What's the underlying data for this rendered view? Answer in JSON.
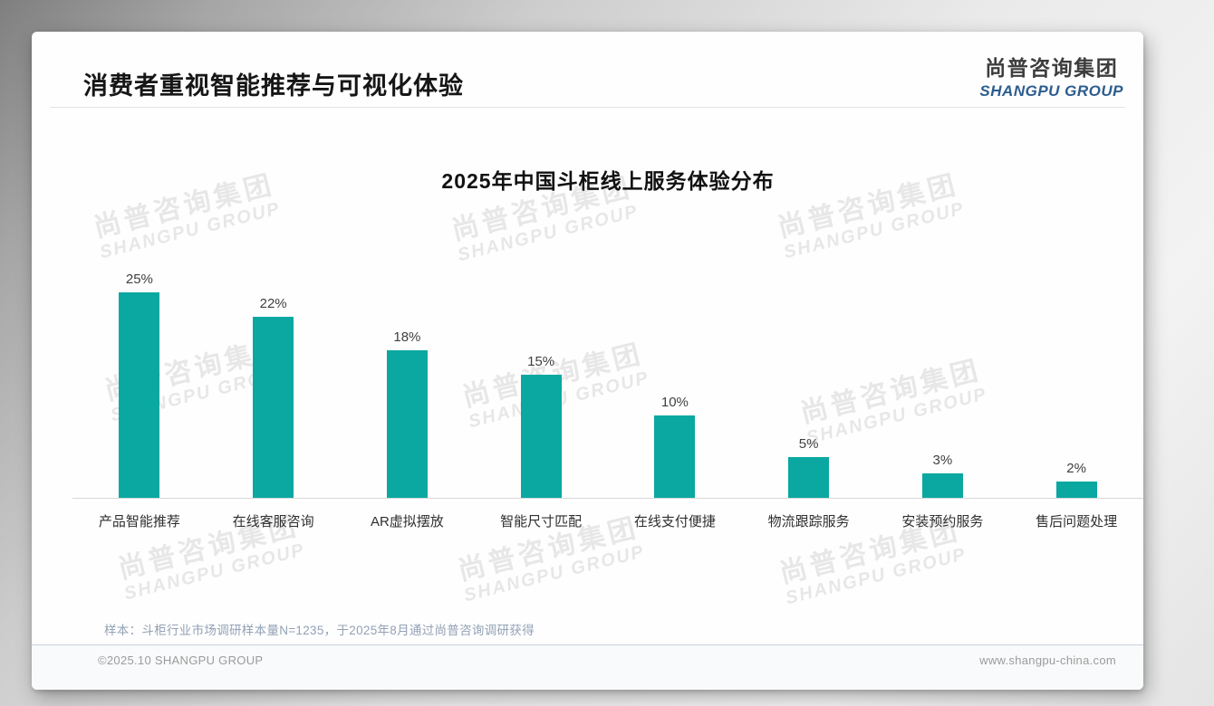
{
  "header": {
    "title": "消费者重视智能推荐与可视化体验",
    "logo_cn": "尚普咨询集团",
    "logo_en": "SHANGPU GROUP"
  },
  "watermark": {
    "line1": "尚普咨询集团",
    "line2": "SHANGPU GROUP"
  },
  "chart_data": {
    "type": "bar",
    "title": "2025年中国斗柜线上服务体验分布",
    "categories": [
      "产品智能推荐",
      "在线客服咨询",
      "AR虚拟摆放",
      "智能尺寸匹配",
      "在线支付便捷",
      "物流跟踪服务",
      "安装预约服务",
      "售后问题处理"
    ],
    "values": [
      25,
      22,
      18,
      15,
      10,
      5,
      3,
      2
    ],
    "value_labels": [
      "25%",
      "22%",
      "18%",
      "15%",
      "10%",
      "5%",
      "3%",
      "2%"
    ],
    "unit": "%",
    "ylim": [
      0,
      25
    ],
    "grid": false,
    "legend": false,
    "bar_color": "#0aa8a1"
  },
  "note": "样本：斗柜行业市场调研样本量N=1235，于2025年8月通过尚普咨询调研获得",
  "footer": {
    "copyright": "©2025.10 SHANGPU GROUP",
    "website": "www.shangpu-china.com"
  },
  "colors": {
    "bar": "#0aa8a1",
    "logo_blue": "#2d5d8f",
    "note_gray_blue": "#93a1b5"
  }
}
